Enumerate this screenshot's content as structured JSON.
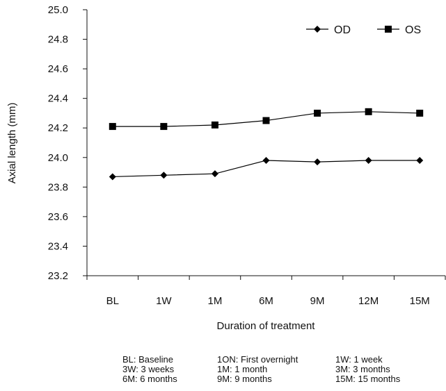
{
  "chart_data": {
    "type": "line",
    "title": "",
    "xlabel": "Duration of treatment",
    "ylabel": "Axial length (mm)",
    "categories": [
      "BL",
      "1W",
      "1M",
      "6M",
      "9M",
      "12M",
      "15M"
    ],
    "ylim": [
      23.2,
      25.0
    ],
    "yticks": [
      "25.0",
      "24.8",
      "24.6",
      "24.4",
      "24.2",
      "24.0",
      "23.8",
      "23.6",
      "23.4",
      "23.2"
    ],
    "grid": false,
    "legend_position": "top-right",
    "series": [
      {
        "name": "OD",
        "marker": "diamond",
        "color": "#000000",
        "x": [
          0.5,
          1.5,
          2.5,
          3.5,
          4.5,
          5.5,
          6.5
        ],
        "values": [
          23.87,
          23.88,
          23.89,
          23.98,
          23.97,
          23.98,
          23.98
        ]
      },
      {
        "name": "OS",
        "marker": "square",
        "color": "#000000",
        "x": [
          0.5,
          1.5,
          2.5,
          3.5,
          4.5,
          5.5,
          6.5
        ],
        "values": [
          24.21,
          24.21,
          24.22,
          24.25,
          24.3,
          24.31,
          24.3
        ]
      }
    ]
  },
  "abbreviations": [
    "BL: Baseline",
    "1ON: First overnight",
    "1W: 1 week",
    "3W: 3 weeks",
    "1M: 1 month",
    "3M: 3 months",
    "6M: 6 months",
    "9M: 9 months",
    "15M: 15 months"
  ]
}
